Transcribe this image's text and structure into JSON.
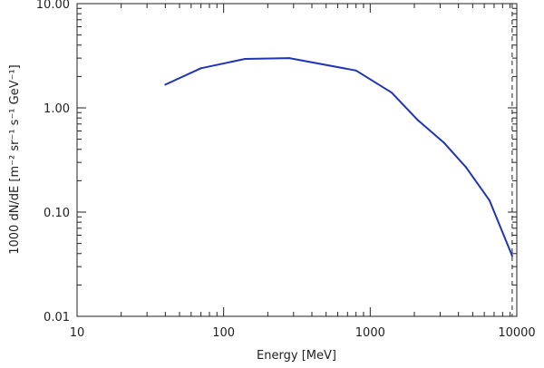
{
  "chart_data": {
    "type": "line",
    "title": "",
    "xlabel": "Energy [MeV]",
    "ylabel": "1000 dN/dE [m⁻² sr⁻¹ s⁻¹ GeV⁻¹]",
    "x_scale": "log",
    "y_scale": "log",
    "xlim": [
      10,
      10000
    ],
    "ylim": [
      0.01,
      10
    ],
    "x_tick_labels": [
      "10",
      "100",
      "1000",
      "10000"
    ],
    "y_tick_labels": [
      "0.01",
      "0.10",
      "1.00",
      "10.00"
    ],
    "grid": false,
    "legend": "none",
    "reference_line": {
      "style": "dashed",
      "x": 9300
    },
    "series": [
      {
        "color": "#1f35b5",
        "x": [
          40,
          70,
          140,
          280,
          800,
          1400,
          2100,
          3200,
          4500,
          6500,
          9300
        ],
        "y": [
          1.67,
          2.4,
          2.95,
          3.0,
          2.28,
          1.4,
          0.77,
          0.46,
          0.27,
          0.13,
          0.038
        ]
      }
    ]
  }
}
